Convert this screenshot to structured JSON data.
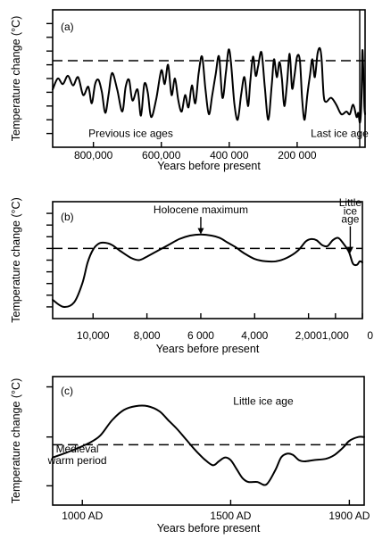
{
  "chart_data": [
    {
      "panel": "(a)",
      "type": "line",
      "ylabel": "Temperature change (°C)",
      "xlabel": "Years before present",
      "x_axis_reversed": true,
      "xlim": [
        920000,
        0
      ],
      "ylim": [
        0,
        10
      ],
      "y_ticks": [
        1,
        2,
        3,
        4,
        5,
        6,
        7,
        8,
        9
      ],
      "x_ticks": [
        {
          "value": 800000,
          "label": "800,000"
        },
        {
          "value": 600000,
          "label": "600,000"
        },
        {
          "value": 400000,
          "label": "400 000"
        },
        {
          "value": 200000,
          "label": "200 000"
        }
      ],
      "reference_y": 6.3,
      "annotations": [
        {
          "text": "Previous ice ages",
          "x": 690000,
          "y": 0.75
        },
        {
          "text": "Last ice age",
          "x": 75000,
          "y": 0.75
        }
      ],
      "x": [
        920000,
        905000,
        890000,
        875000,
        860000,
        845000,
        830000,
        815000,
        805000,
        795000,
        785000,
        775000,
        765000,
        755000,
        745000,
        730000,
        715000,
        705000,
        695000,
        685000,
        670000,
        660000,
        650000,
        640000,
        630000,
        615000,
        600000,
        590000,
        580000,
        570000,
        560000,
        550000,
        540000,
        530000,
        520000,
        510000,
        500000,
        490000,
        480000,
        470000,
        460000,
        450000,
        440000,
        430000,
        420000,
        410000,
        402000,
        395000,
        385000,
        375000,
        365000,
        355000,
        345000,
        338000,
        330000,
        322000,
        315000,
        305000,
        295000,
        285000,
        275000,
        268000,
        260000,
        252000,
        245000,
        238000,
        230000,
        222000,
        215000,
        208000,
        200000,
        192000,
        185000,
        178000,
        170000,
        162000,
        155000,
        148000,
        140000,
        133000,
        128000,
        122000,
        115000,
        100000,
        85000,
        70000,
        55000,
        45000,
        35000,
        25000,
        20000,
        15000,
        11000,
        8000,
        5000,
        2000,
        0
      ],
      "values": [
        4.2,
        5.0,
        4.6,
        5.2,
        4.5,
        5.1,
        3.8,
        4.4,
        3.2,
        4.6,
        4.9,
        4.0,
        2.5,
        3.9,
        5.4,
        4.2,
        2.6,
        4.4,
        4.9,
        3.4,
        4.2,
        2.3,
        4.6,
        4.0,
        2.2,
        3.5,
        5.6,
        4.6,
        6.0,
        3.8,
        5.0,
        3.4,
        2.6,
        3.8,
        2.9,
        4.5,
        3.2,
        5.4,
        6.6,
        4.2,
        2.4,
        3.8,
        5.3,
        6.6,
        3.6,
        5.4,
        7.1,
        6.2,
        3.2,
        2.0,
        3.8,
        5.1,
        3.0,
        4.8,
        6.6,
        5.2,
        5.9,
        6.9,
        4.3,
        2.0,
        4.5,
        6.4,
        5.1,
        6.2,
        5.0,
        3.0,
        4.6,
        6.8,
        4.3,
        5.2,
        6.6,
        6.3,
        3.4,
        2.0,
        3.8,
        5.3,
        6.4,
        5.1,
        6.8,
        7.2,
        6.4,
        3.8,
        3.3,
        3.6,
        3.1,
        2.4,
        2.6,
        2.4,
        3.1,
        2.2,
        2.5,
        1.8,
        3.2,
        7.0,
        5.5,
        3.0,
        2.4
      ]
    },
    {
      "panel": "(b)",
      "type": "line",
      "ylabel": "Temperature change (°C)",
      "xlabel": "Years before present",
      "x_axis_reversed": true,
      "xlim": [
        11500,
        0
      ],
      "ylim": [
        0,
        10
      ],
      "y_ticks": [
        1,
        2,
        3,
        4,
        5,
        6,
        7,
        8,
        9
      ],
      "x_ticks": [
        {
          "value": 10000,
          "label": "10,000"
        },
        {
          "value": 8000,
          "label": "8,000"
        },
        {
          "value": 6000,
          "label": "6 000"
        },
        {
          "value": 4000,
          "label": "4,000"
        },
        {
          "value": 2000,
          "label": "2,000"
        },
        {
          "value": 1000,
          "label": "1,000"
        },
        {
          "value": 0,
          "label": "0"
        }
      ],
      "reference_y": 6.0,
      "annotations": [
        {
          "text": "Holocene maximum",
          "x": 6000,
          "y": 9.0,
          "arrow_to_y": 7.2
        },
        {
          "text": "Little",
          "x": 450,
          "y": 9.6
        },
        {
          "text": "ice",
          "x": 450,
          "y": 8.9
        },
        {
          "text": "age",
          "x": 450,
          "y": 8.2,
          "arrow_to_y": 5.6
        }
      ],
      "x": [
        11500,
        11100,
        10700,
        10400,
        10200,
        10000,
        9800,
        9600,
        9300,
        9000,
        8600,
        8300,
        8000,
        7600,
        7200,
        6800,
        6400,
        6000,
        5600,
        5300,
        5000,
        4700,
        4400,
        4000,
        3600,
        3200,
        2800,
        2400,
        2100,
        1900,
        1700,
        1500,
        1300,
        1100,
        900,
        700,
        500,
        350,
        200,
        100,
        0
      ],
      "values": [
        1.6,
        1.0,
        1.4,
        3.0,
        4.8,
        5.9,
        6.4,
        6.5,
        6.3,
        5.8,
        5.2,
        5.0,
        5.3,
        5.8,
        6.3,
        6.8,
        7.1,
        7.2,
        7.1,
        6.9,
        6.5,
        6.1,
        5.6,
        5.1,
        4.9,
        4.9,
        5.2,
        5.8,
        6.6,
        6.8,
        6.7,
        6.3,
        6.2,
        6.7,
        6.9,
        6.4,
        5.7,
        4.7,
        4.6,
        4.9,
        4.8
      ]
    },
    {
      "panel": "(c)",
      "type": "line",
      "ylabel": "Temperature change (°C)",
      "xlabel": "Years before present",
      "xlim": [
        900,
        1950
      ],
      "ylim": [
        0,
        10
      ],
      "y_ticks": [
        1.5,
        5.3,
        9.2
      ],
      "x_ticks": [
        {
          "value": 1000,
          "label": "1000 AD"
        },
        {
          "value": 1500,
          "label": "1500 AD"
        },
        {
          "value": 1900,
          "label": "1900 AD"
        }
      ],
      "reference_y": 4.7,
      "annotations": [
        {
          "text": "Little ice age",
          "x": 1610,
          "y": 7.8
        },
        {
          "text": "Medieval",
          "x": 983,
          "y": 4.1
        },
        {
          "text": "warm period",
          "x": 983,
          "y": 3.2
        }
      ],
      "x": [
        900,
        960,
        1020,
        1060,
        1100,
        1140,
        1180,
        1220,
        1260,
        1290,
        1320,
        1350,
        1380,
        1410,
        1440,
        1460,
        1480,
        1500,
        1520,
        1540,
        1560,
        1590,
        1620,
        1650,
        1670,
        1690,
        1710,
        1730,
        1750,
        1780,
        1820,
        1850,
        1880,
        1900,
        1930,
        1950
      ],
      "values": [
        3.7,
        4.2,
        4.8,
        5.4,
        6.6,
        7.4,
        7.7,
        7.7,
        7.3,
        6.6,
        5.9,
        5.1,
        4.3,
        3.6,
        3.1,
        3.4,
        3.7,
        3.5,
        2.8,
        2.1,
        1.8,
        1.8,
        1.6,
        2.7,
        3.7,
        4.0,
        3.9,
        3.5,
        3.4,
        3.5,
        3.6,
        3.9,
        4.5,
        5.0,
        5.3,
        5.3
      ]
    }
  ]
}
